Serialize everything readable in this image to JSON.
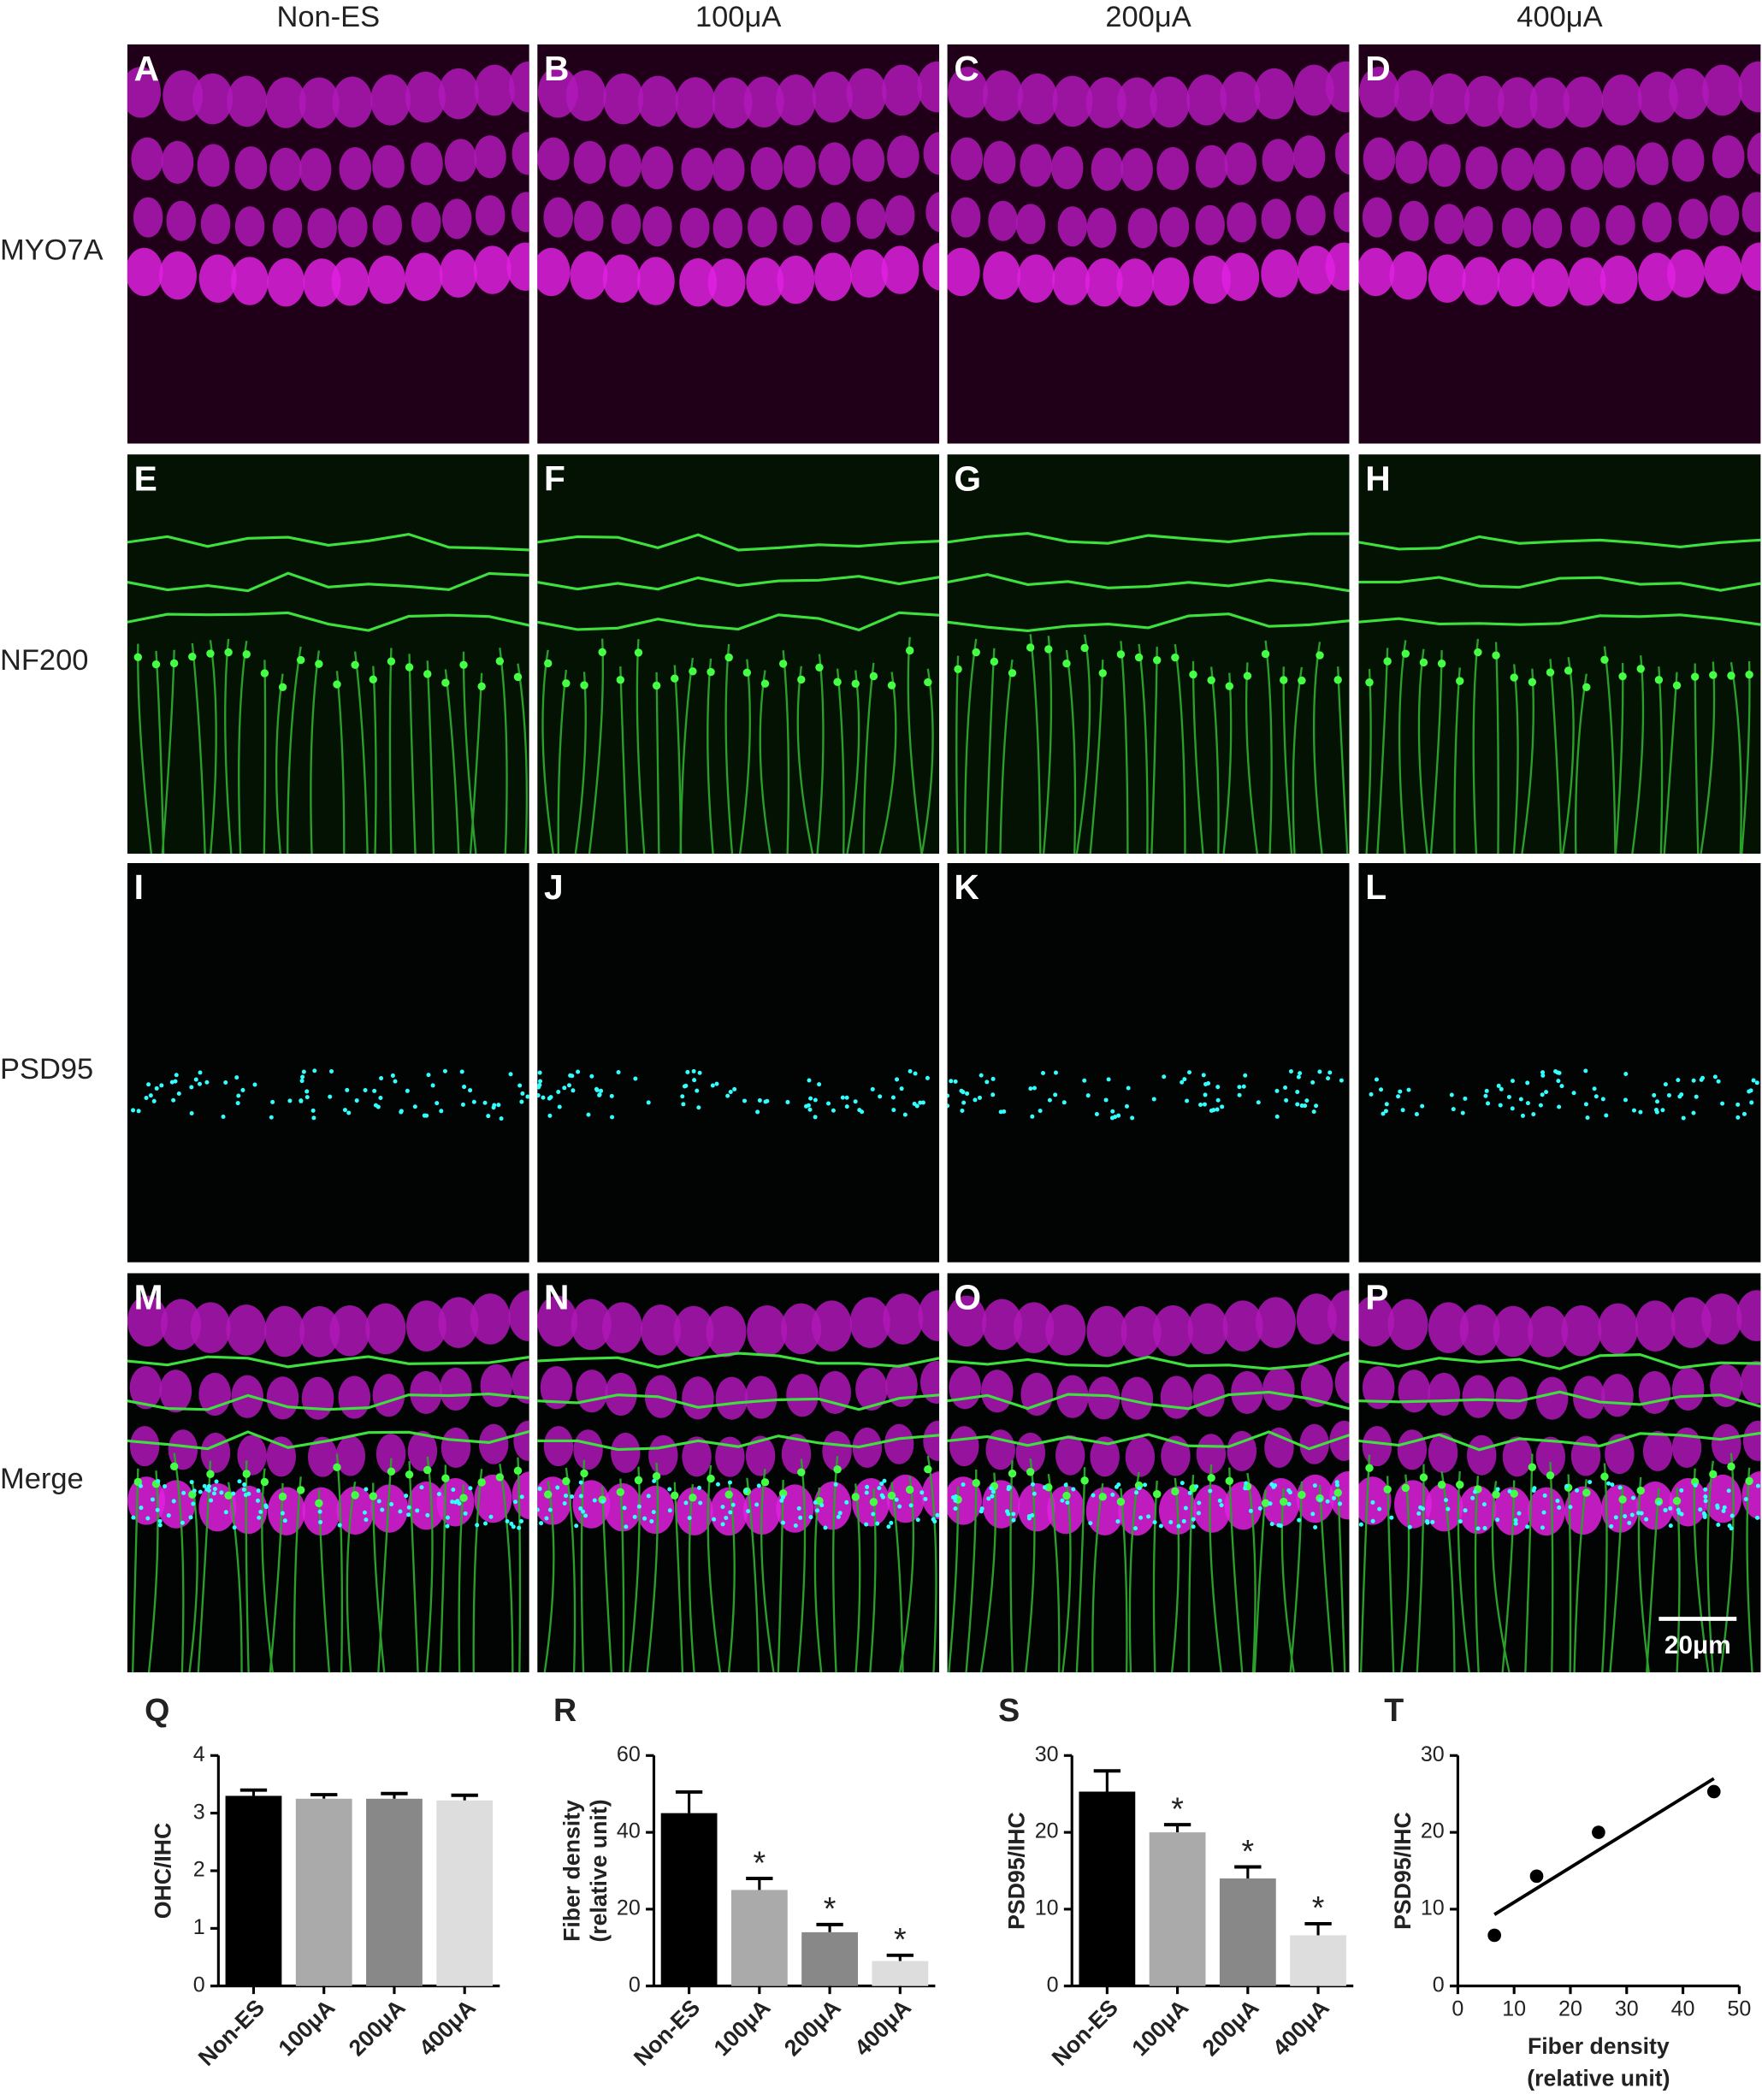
{
  "columns": [
    "Non-ES",
    "100μA",
    "200μA",
    "400μA"
  ],
  "rows": [
    "MYO7A",
    "NF200",
    "PSD95",
    "Merge"
  ],
  "panels": [
    "A",
    "B",
    "C",
    "D",
    "E",
    "F",
    "G",
    "H",
    "I",
    "J",
    "K",
    "L",
    "M",
    "N",
    "O",
    "P"
  ],
  "scale_bar": "20μm",
  "chart_data": [
    {
      "type": "bar",
      "panel": "Q",
      "ylabel": [
        "OHC/IHC"
      ],
      "categories": [
        "Non-ES",
        "100μA",
        "200μA",
        "400μA"
      ],
      "values": [
        3.3,
        3.25,
        3.25,
        3.22
      ],
      "errors": [
        0.1,
        0.07,
        0.09,
        0.09
      ],
      "colors": [
        "#000000",
        "#aaaaaa",
        "#888888",
        "#dddddd"
      ],
      "ylim": [
        0,
        4
      ],
      "yticks": [
        0,
        1,
        2,
        3,
        4
      ]
    },
    {
      "type": "bar",
      "panel": "R",
      "ylabel": [
        "Fiber density",
        "(relative unit)"
      ],
      "categories": [
        "Non-ES",
        "100μA",
        "200μA",
        "400μA"
      ],
      "values": [
        45,
        25,
        14,
        6.5
      ],
      "errors": [
        5.5,
        3,
        2,
        1.5
      ],
      "significance": [
        null,
        "*",
        "*",
        "*"
      ],
      "colors": [
        "#000000",
        "#aaaaaa",
        "#888888",
        "#dddddd"
      ],
      "ylim": [
        0,
        60
      ],
      "yticks": [
        0,
        20,
        40,
        60
      ]
    },
    {
      "type": "bar",
      "panel": "S",
      "ylabel": [
        "PSD95/IHC"
      ],
      "categories": [
        "Non-ES",
        "100μA",
        "200μA",
        "400μA"
      ],
      "values": [
        25.3,
        20,
        14,
        6.6
      ],
      "errors": [
        2.7,
        1,
        1.5,
        1.5
      ],
      "significance": [
        null,
        "*",
        "*",
        "*"
      ],
      "colors": [
        "#000000",
        "#aaaaaa",
        "#888888",
        "#dddddd"
      ],
      "ylim": [
        0,
        30
      ],
      "yticks": [
        0,
        10,
        20,
        30
      ]
    },
    {
      "type": "scatter",
      "panel": "T",
      "ylabel": [
        "PSD95/IHC"
      ],
      "xlabel": [
        "Fiber density",
        "(relative unit)"
      ],
      "x": [
        6.5,
        14,
        25,
        45.5
      ],
      "y": [
        6.6,
        14.3,
        20,
        25.3
      ],
      "color": "#000000",
      "fit": {
        "x": [
          6.5,
          45.5
        ],
        "y": [
          9.3,
          27
        ]
      },
      "xlim": [
        0,
        50
      ],
      "xticks": [
        0,
        10,
        20,
        30,
        40,
        50
      ],
      "ylim": [
        0,
        30
      ],
      "yticks": [
        0,
        10,
        20,
        30
      ]
    }
  ]
}
